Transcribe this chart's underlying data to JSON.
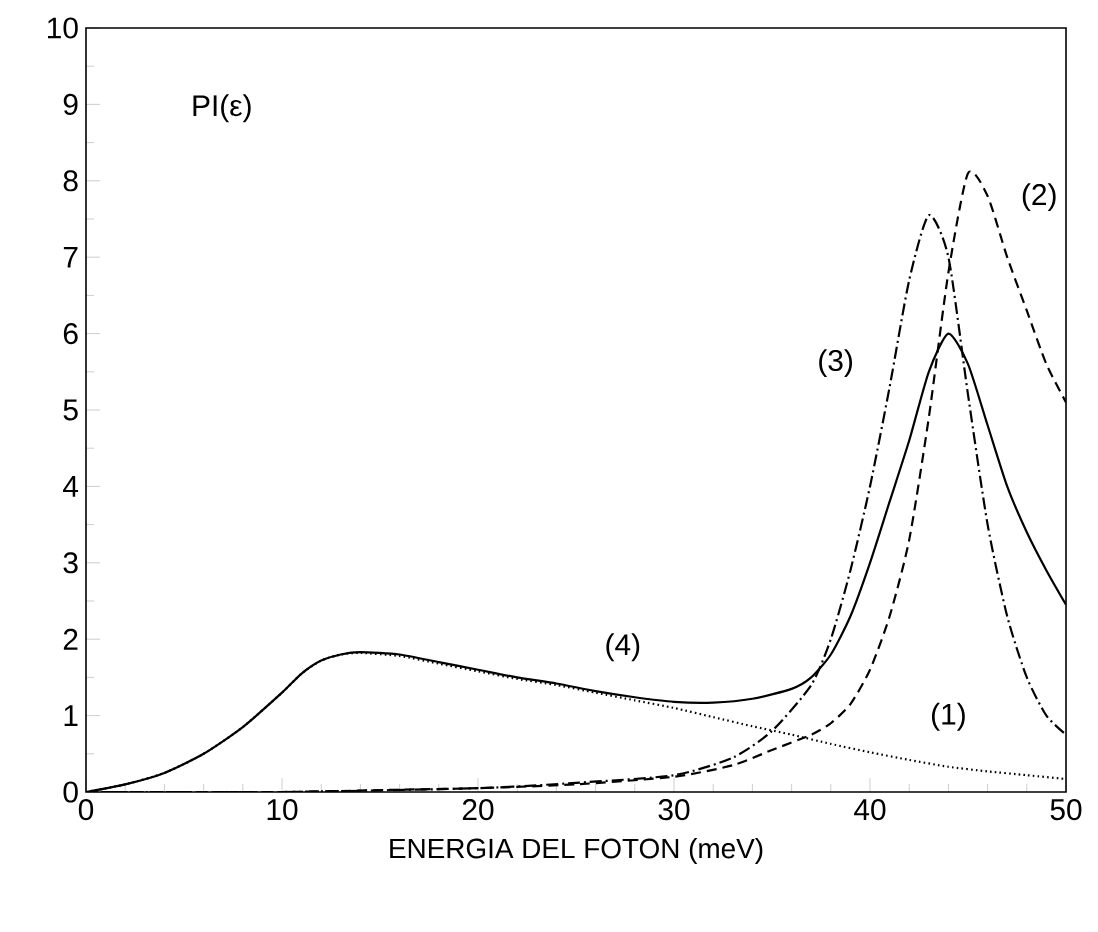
{
  "chart_data": {
    "type": "line",
    "xlabel": "ENERGIA DEL FOTON (meV)",
    "ylabel": "PI(ε)",
    "xlim": [
      0,
      50
    ],
    "ylim": [
      0,
      10
    ],
    "xticks": [
      0,
      {
        "value": 2,
        "label": null
      },
      {
        "value": 4,
        "label": null
      },
      {
        "value": 6,
        "label": null
      },
      {
        "value": 8,
        "label": null
      },
      10,
      {
        "value": 12,
        "label": null
      },
      {
        "value": 14,
        "label": null
      },
      {
        "value": 16,
        "label": null
      },
      {
        "value": 18,
        "label": null
      },
      20,
      {
        "value": 22,
        "label": null
      },
      {
        "value": 24,
        "label": null
      },
      {
        "value": 26,
        "label": null
      },
      {
        "value": 28,
        "label": null
      },
      30,
      {
        "value": 32,
        "label": null
      },
      {
        "value": 34,
        "label": null
      },
      {
        "value": 36,
        "label": null
      },
      {
        "value": 38,
        "label": null
      },
      40,
      {
        "value": 42,
        "label": null
      },
      {
        "value": 44,
        "label": null
      },
      {
        "value": 46,
        "label": null
      },
      {
        "value": 48,
        "label": null
      },
      50
    ],
    "yticks": [
      0,
      {
        "value": 0.5,
        "label": null
      },
      1,
      {
        "value": 1.5,
        "label": null
      },
      2,
      {
        "value": 2.5,
        "label": null
      },
      3,
      {
        "value": 3.5,
        "label": null
      },
      4,
      {
        "value": 4.5,
        "label": null
      },
      5,
      {
        "value": 5.5,
        "label": null
      },
      6,
      {
        "value": 6.5,
        "label": null
      },
      7,
      {
        "value": 7.5,
        "label": null
      },
      8,
      {
        "value": 8.5,
        "label": null
      },
      9,
      {
        "value": 9.5,
        "label": null
      },
      10
    ],
    "grid": false,
    "legend": false,
    "marker": "none",
    "series": [
      {
        "name": "(1)",
        "color": "#000000",
        "line_style": "dotted",
        "x": [
          0,
          2,
          4,
          6,
          8,
          10,
          11,
          12,
          13,
          14,
          16,
          18,
          20,
          22,
          24,
          26,
          28,
          30,
          32,
          34,
          36,
          38,
          40,
          42,
          44,
          46,
          48,
          50
        ],
        "values": [
          0,
          0.1,
          0.25,
          0.5,
          0.85,
          1.3,
          1.55,
          1.72,
          1.8,
          1.82,
          1.78,
          1.68,
          1.58,
          1.48,
          1.4,
          1.3,
          1.2,
          1.1,
          0.98,
          0.86,
          0.75,
          0.63,
          0.52,
          0.42,
          0.33,
          0.27,
          0.22,
          0.17
        ]
      },
      {
        "name": "(2)",
        "color": "#000000",
        "line_style": "dashed",
        "x": [
          0,
          10,
          16,
          20,
          25,
          30,
          33,
          35,
          37,
          38,
          39,
          40,
          41,
          42,
          43,
          44,
          45,
          46,
          47,
          48,
          49,
          50
        ],
        "values": [
          0,
          0,
          0.03,
          0.05,
          0.1,
          0.2,
          0.35,
          0.55,
          0.75,
          0.9,
          1.15,
          1.6,
          2.3,
          3.3,
          4.9,
          6.8,
          8.1,
          7.8,
          7.0,
          6.3,
          5.6,
          5.1
        ]
      },
      {
        "name": "(3)",
        "color": "#000000",
        "line_style": "dashdot",
        "x": [
          0,
          10,
          20,
          25,
          30,
          33,
          35,
          37,
          38,
          39,
          40,
          41,
          42,
          43,
          44,
          45,
          46,
          47,
          48,
          49,
          50
        ],
        "values": [
          0,
          0,
          0.05,
          0.12,
          0.22,
          0.45,
          0.8,
          1.4,
          2.0,
          2.9,
          4.0,
          5.3,
          6.7,
          7.55,
          7.0,
          5.2,
          3.5,
          2.3,
          1.5,
          1.0,
          0.75
        ]
      },
      {
        "name": "(4)",
        "color": "#000000",
        "line_style": "solid",
        "x": [
          0,
          2,
          4,
          6,
          8,
          10,
          11,
          12,
          13,
          14,
          16,
          18,
          20,
          22,
          24,
          26,
          28,
          30,
          32,
          34,
          36,
          37,
          38,
          39,
          40,
          41,
          42,
          43,
          44,
          45,
          46,
          47,
          48,
          49,
          50
        ],
        "values": [
          0,
          0.1,
          0.25,
          0.5,
          0.85,
          1.3,
          1.55,
          1.72,
          1.8,
          1.83,
          1.8,
          1.7,
          1.6,
          1.5,
          1.42,
          1.32,
          1.24,
          1.18,
          1.17,
          1.22,
          1.35,
          1.5,
          1.8,
          2.3,
          3.0,
          3.8,
          4.6,
          5.5,
          6.0,
          5.6,
          4.8,
          4.0,
          3.4,
          2.9,
          2.45
        ]
      }
    ]
  }
}
